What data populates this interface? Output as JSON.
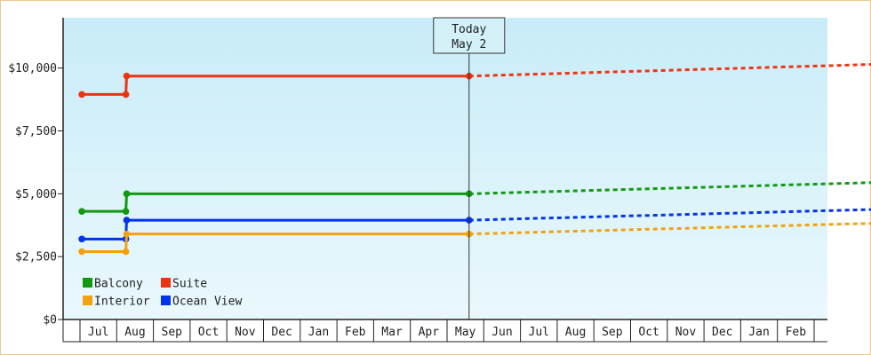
{
  "chart_data": {
    "type": "line",
    "title": "",
    "xlabel": "",
    "ylabel": "",
    "ylim": [
      0,
      12000
    ],
    "y_ticks": [
      {
        "value": 0,
        "label": "$0"
      },
      {
        "value": 2500,
        "label": "$2,500"
      },
      {
        "value": 5000,
        "label": "$5,000"
      },
      {
        "value": 7500,
        "label": "$7,500"
      },
      {
        "value": 10000,
        "label": "$10,000"
      }
    ],
    "x_categories": [
      "Jul",
      "Aug",
      "Sep",
      "Oct",
      "Nov",
      "Dec",
      "Jan",
      "Feb",
      "Mar",
      "Apr",
      "May",
      "Jun",
      "Jul",
      "Aug",
      "Sep",
      "Oct",
      "Nov",
      "Dec",
      "Jan",
      "Feb"
    ],
    "grid": false,
    "background_gradient": [
      "#c8ecf8",
      "#eaf8fc"
    ],
    "today_marker": {
      "line1": "Today",
      "line2": "May 2",
      "x": 10.1
    },
    "legend": {
      "placement": "bottom-left",
      "entries": [
        {
          "name": "Balcony",
          "color": "#119911"
        },
        {
          "name": "Suite",
          "color": "#ee3311"
        },
        {
          "name": "Interior",
          "color": "#f2a20f"
        },
        {
          "name": "Ocean View",
          "color": "#0033ee"
        }
      ]
    },
    "series": [
      {
        "name": "Suite",
        "color": "#ee3311",
        "history": [
          [
            -0.45,
            8950
          ],
          [
            0.75,
            8950
          ],
          [
            0.77,
            9680
          ],
          [
            10.1,
            9680
          ]
        ],
        "forecast": [
          [
            10.1,
            9680
          ],
          [
            21.2,
            10150
          ]
        ]
      },
      {
        "name": "Balcony",
        "color": "#119911",
        "history": [
          [
            -0.45,
            4300
          ],
          [
            0.75,
            4300
          ],
          [
            0.77,
            5000
          ],
          [
            10.1,
            5000
          ]
        ],
        "forecast": [
          [
            10.1,
            5000
          ],
          [
            21.2,
            5450
          ]
        ]
      },
      {
        "name": "Ocean View",
        "color": "#0033ee",
        "history": [
          [
            -0.45,
            3200
          ],
          [
            0.75,
            3200
          ],
          [
            0.77,
            3950
          ],
          [
            10.1,
            3950
          ]
        ],
        "forecast": [
          [
            10.1,
            3950
          ],
          [
            21.2,
            4380
          ]
        ]
      },
      {
        "name": "Interior",
        "color": "#f2a20f",
        "history": [
          [
            -0.45,
            2700
          ],
          [
            0.75,
            2700
          ],
          [
            0.77,
            3400
          ],
          [
            10.1,
            3400
          ]
        ],
        "forecast": [
          [
            10.1,
            3400
          ],
          [
            21.2,
            3830
          ]
        ]
      }
    ]
  }
}
